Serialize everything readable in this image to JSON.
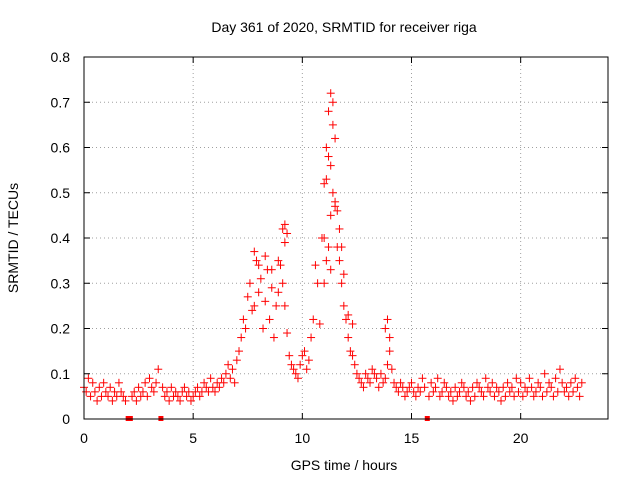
{
  "chart_data": {
    "type": "scatter",
    "title": "Day 361 of 2020, SRMTID for receiver riga",
    "xlabel": "GPS time / hours",
    "ylabel": "SRMTID / TECUs",
    "xlim": [
      0,
      24
    ],
    "ylim": [
      0,
      0.8
    ],
    "xticks": [
      0,
      5,
      10,
      15,
      20
    ],
    "xtick_labels": [
      "0",
      "5",
      "10",
      "15",
      "20"
    ],
    "yticks": [
      0,
      0.1,
      0.2,
      0.3,
      0.4,
      0.5,
      0.6,
      0.7,
      0.8
    ],
    "ytick_labels": [
      "0",
      "0.1",
      "0.2",
      "0.3",
      "0.4",
      "0.5",
      "0.6",
      "0.7",
      "0.8"
    ],
    "grid": true,
    "marker": "+",
    "series_color": "#ff0000",
    "baseline_markers_x": [
      2.0,
      2.1,
      3.5,
      15.7
    ],
    "series": [
      {
        "name": "SRMTID",
        "x": [
          0.0,
          0.1,
          0.2,
          0.3,
          0.4,
          0.5,
          0.6,
          0.7,
          0.8,
          0.9,
          1.0,
          1.1,
          1.2,
          1.3,
          1.4,
          1.5,
          1.6,
          1.7,
          1.8,
          1.9,
          2.2,
          2.3,
          2.4,
          2.5,
          2.6,
          2.7,
          2.8,
          2.9,
          3.0,
          3.1,
          3.2,
          3.3,
          3.4,
          3.6,
          3.7,
          3.8,
          3.9,
          4.0,
          4.1,
          4.2,
          4.3,
          4.4,
          4.5,
          4.6,
          4.7,
          4.8,
          4.9,
          5.0,
          5.1,
          5.2,
          5.3,
          5.4,
          5.5,
          5.6,
          5.7,
          5.8,
          5.9,
          6.0,
          6.1,
          6.2,
          6.3,
          6.4,
          6.5,
          6.6,
          6.7,
          6.8,
          6.9,
          7.0,
          7.1,
          7.2,
          7.3,
          7.4,
          7.5,
          7.6,
          7.7,
          7.8,
          7.9,
          8.0,
          8.1,
          8.2,
          8.3,
          8.4,
          8.5,
          8.6,
          8.7,
          8.8,
          8.9,
          9.0,
          9.1,
          9.2,
          9.3,
          9.4,
          9.5,
          9.6,
          9.7,
          9.8,
          9.9,
          10.0,
          10.1,
          10.2,
          10.3,
          10.4,
          10.5,
          10.6,
          10.7,
          10.8,
          10.9,
          11.0,
          11.1,
          11.2,
          11.3,
          11.4,
          11.5,
          11.6,
          11.7,
          11.8,
          11.9,
          12.0,
          12.1,
          12.2,
          12.3,
          12.4,
          12.5,
          12.6,
          12.7,
          12.8,
          12.9,
          13.0,
          13.1,
          13.2,
          13.3,
          13.4,
          13.5,
          13.6,
          13.7,
          13.8,
          13.9,
          14.0,
          14.1,
          14.2,
          14.3,
          14.4,
          14.5,
          14.6,
          14.7,
          14.8,
          14.9,
          15.0,
          15.1,
          15.2,
          15.3,
          15.4,
          15.5,
          15.6,
          15.8,
          15.9,
          16.0,
          16.1,
          16.2,
          16.3,
          16.4,
          16.5,
          16.6,
          16.7,
          16.8,
          16.9,
          17.0,
          17.1,
          17.2,
          17.3,
          17.4,
          17.5,
          17.6,
          17.7,
          17.8,
          17.9,
          18.0,
          18.1,
          18.2,
          18.3,
          18.4,
          18.5,
          18.6,
          18.7,
          18.8,
          18.9,
          19.0,
          19.1,
          19.2,
          19.3,
          19.4,
          19.5,
          19.6,
          19.7,
          19.8,
          19.9,
          20.0,
          20.1,
          20.2,
          20.3,
          20.4,
          20.5,
          20.6,
          20.7,
          20.8,
          20.9,
          21.0,
          21.1,
          21.2,
          21.3,
          21.4,
          21.5,
          21.6,
          21.7,
          21.8,
          21.9,
          22.0,
          22.1,
          22.2,
          22.3,
          22.4,
          22.5,
          22.6,
          22.7,
          22.8,
          7.8,
          8.0,
          8.3,
          8.6,
          8.9,
          9.1,
          9.2,
          9.3,
          9.2,
          11.0,
          11.1,
          11.2,
          11.3,
          11.4,
          11.5,
          11.6,
          11.1,
          11.3,
          11.5,
          11.2,
          11.4,
          11.7,
          11.8,
          11.9,
          11.0,
          11.3,
          13.9,
          13.8,
          14.0,
          12.1,
          12.3
        ],
        "y": [
          0.07,
          0.06,
          0.09,
          0.05,
          0.08,
          0.06,
          0.04,
          0.07,
          0.05,
          0.08,
          0.06,
          0.05,
          0.07,
          0.04,
          0.06,
          0.05,
          0.08,
          0.06,
          0.05,
          0.04,
          0.05,
          0.06,
          0.04,
          0.07,
          0.05,
          0.06,
          0.08,
          0.05,
          0.09,
          0.07,
          0.06,
          0.08,
          0.11,
          0.07,
          0.05,
          0.06,
          0.04,
          0.07,
          0.05,
          0.06,
          0.05,
          0.04,
          0.06,
          0.07,
          0.05,
          0.06,
          0.04,
          0.05,
          0.06,
          0.07,
          0.05,
          0.06,
          0.08,
          0.07,
          0.06,
          0.09,
          0.07,
          0.06,
          0.08,
          0.07,
          0.09,
          0.08,
          0.1,
          0.12,
          0.09,
          0.11,
          0.08,
          0.13,
          0.15,
          0.18,
          0.22,
          0.2,
          0.27,
          0.3,
          0.24,
          0.25,
          0.35,
          0.28,
          0.31,
          0.2,
          0.26,
          0.33,
          0.22,
          0.29,
          0.18,
          0.25,
          0.28,
          0.34,
          0.3,
          0.25,
          0.19,
          0.14,
          0.12,
          0.11,
          0.1,
          0.09,
          0.12,
          0.14,
          0.15,
          0.11,
          0.13,
          0.18,
          0.22,
          0.34,
          0.3,
          0.21,
          0.4,
          0.52,
          0.6,
          0.68,
          0.56,
          0.65,
          0.48,
          0.38,
          0.35,
          0.3,
          0.25,
          0.22,
          0.18,
          0.15,
          0.14,
          0.12,
          0.1,
          0.09,
          0.08,
          0.07,
          0.1,
          0.09,
          0.08,
          0.11,
          0.1,
          0.09,
          0.07,
          0.1,
          0.08,
          0.09,
          0.12,
          0.15,
          0.11,
          0.08,
          0.07,
          0.06,
          0.08,
          0.07,
          0.05,
          0.06,
          0.07,
          0.08,
          0.06,
          0.05,
          0.07,
          0.06,
          0.09,
          0.07,
          0.05,
          0.08,
          0.06,
          0.07,
          0.09,
          0.05,
          0.06,
          0.08,
          0.07,
          0.05,
          0.06,
          0.04,
          0.07,
          0.05,
          0.06,
          0.08,
          0.07,
          0.05,
          0.06,
          0.04,
          0.07,
          0.05,
          0.08,
          0.07,
          0.06,
          0.05,
          0.09,
          0.07,
          0.06,
          0.08,
          0.05,
          0.07,
          0.06,
          0.04,
          0.07,
          0.05,
          0.08,
          0.06,
          0.07,
          0.05,
          0.09,
          0.06,
          0.08,
          0.05,
          0.07,
          0.06,
          0.09,
          0.07,
          0.05,
          0.06,
          0.08,
          0.07,
          0.05,
          0.1,
          0.06,
          0.08,
          0.07,
          0.05,
          0.09,
          0.06,
          0.11,
          0.08,
          0.06,
          0.07,
          0.05,
          0.08,
          0.06,
          0.09,
          0.07,
          0.05,
          0.08,
          0.37,
          0.34,
          0.36,
          0.33,
          0.35,
          0.42,
          0.43,
          0.41,
          0.39,
          0.4,
          0.35,
          0.38,
          0.72,
          0.7,
          0.62,
          0.46,
          0.53,
          0.45,
          0.47,
          0.58,
          0.5,
          0.42,
          0.38,
          0.32,
          0.3,
          0.33,
          0.22,
          0.2,
          0.18,
          0.23,
          0.21
        ]
      }
    ]
  }
}
